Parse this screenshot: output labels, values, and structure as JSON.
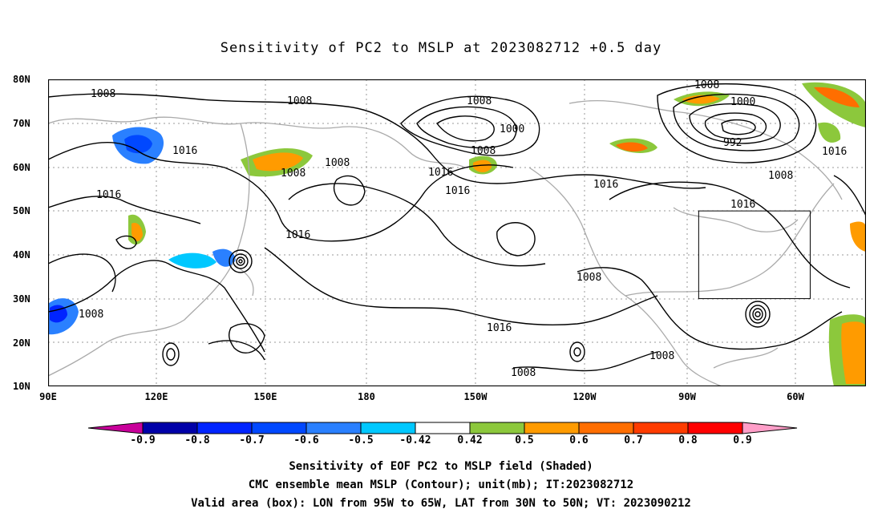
{
  "title": "Sensitivity of PC2 to MSLP at 2023082712 +0.5 day",
  "lat_labels": [
    "80N",
    "70N",
    "60N",
    "50N",
    "40N",
    "30N",
    "20N",
    "10N"
  ],
  "lon_labels": [
    "90E",
    "120E",
    "150E",
    "180",
    "150W",
    "120W",
    "90W",
    "60W"
  ],
  "contour_labels": [
    "1008",
    "1008",
    "1008",
    "1008",
    "1016",
    "1008",
    "1008",
    "1000",
    "1016",
    "1008",
    "1016",
    "1016",
    "1016",
    "1008",
    "1000",
    "992",
    "1008",
    "1016",
    "1016",
    "1016",
    "1008",
    "1008",
    "1016",
    "1008",
    "1008"
  ],
  "colorbar": {
    "colors": [
      "#c8009a",
      "#0000a8",
      "#0024ff",
      "#0048ff",
      "#2a80ff",
      "#00c8ff",
      "#ffffff",
      "#8cc83c",
      "#ff9b00",
      "#ff6e00",
      "#ff3c00",
      "#ff0000",
      "#ff9ec8"
    ],
    "labels": [
      "-0.9",
      "-0.8",
      "-0.7",
      "-0.6",
      "-0.5",
      "-0.42",
      "0.42",
      "0.5",
      "0.6",
      "0.7",
      "0.8",
      "0.9"
    ]
  },
  "valid_box": {
    "lon_min": -95,
    "lon_max": -65,
    "lat_min": 30,
    "lat_max": 50
  },
  "footer": {
    "line1": "Sensitivity of EOF PC2 to MSLP field (Shaded)",
    "line2": "CMC ensemble mean MSLP (Contour); unit(mb); IT:2023082712",
    "line3": "Valid area (box): LON from 95W to 65W, LAT from 30N to 50N; VT: 2023090212"
  }
}
